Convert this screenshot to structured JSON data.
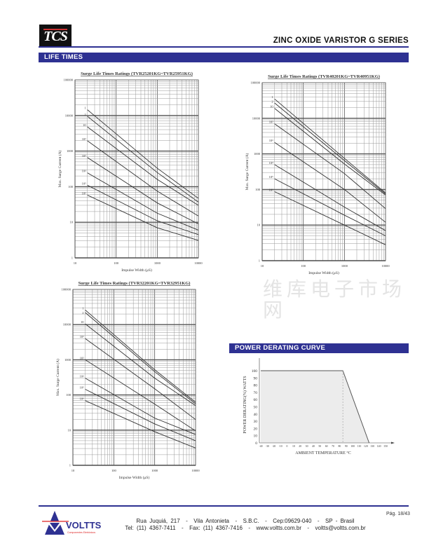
{
  "header": {
    "logo_text": "TCS",
    "series_title": "ZINC OXIDE VARISTOR G SERIES"
  },
  "sections": {
    "life_times": "LIFE TIMES",
    "power_derating": "POWER DERATING CURVE"
  },
  "watermark": "维库电子市场网",
  "chart_data": [
    {
      "type": "line",
      "title": "Surge Life Times Ratings (TVR25201KG~TVR25951KG)",
      "xlabel": "Impulse Width (μS)",
      "ylabel": "Max. Surge Current (A)",
      "xscale": "log",
      "yscale": "log",
      "xlim": [
        10,
        10000
      ],
      "ylim": [
        1,
        100000
      ],
      "xticks": [
        "10",
        "100",
        "1000",
        "10000"
      ],
      "yticks": [
        "1",
        "10",
        "100",
        "1000",
        "10000",
        "100000"
      ],
      "series": [
        {
          "name": "1",
          "x": [
            20,
            1000,
            10000
          ],
          "y": [
            14500,
            330,
            47
          ]
        },
        {
          "name": "2",
          "x": [
            20,
            1000,
            10000
          ],
          "y": [
            9500,
            250,
            37
          ]
        },
        {
          "name": "10",
          "x": [
            20,
            1000,
            10000
          ],
          "y": [
            4800,
            160,
            30
          ]
        },
        {
          "name": "10²",
          "x": [
            20,
            1000,
            10000
          ],
          "y": [
            1950,
            75,
            15
          ]
        },
        {
          "name": "10³",
          "x": [
            20,
            1000,
            10000
          ],
          "y": [
            660,
            35,
            9
          ]
        },
        {
          "name": "10⁴",
          "x": [
            20,
            1000,
            10000
          ],
          "y": [
            245,
            18,
            6
          ]
        },
        {
          "name": "10⁵",
          "x": [
            20,
            1000,
            10000
          ],
          "y": [
            110,
            11,
            4.5
          ]
        },
        {
          "name": "10⁶",
          "x": [
            20,
            1000,
            10000
          ],
          "y": [
            58,
            7,
            3.1
          ]
        }
      ]
    },
    {
      "type": "line",
      "title": "Surge Life Times Ratings (TVR40201KG~TVR40951KG)",
      "xlabel": "Impulse Width (μS)",
      "ylabel": "Max. Surge Current (A)",
      "xscale": "log",
      "yscale": "log",
      "xlim": [
        10,
        10000
      ],
      "ylim": [
        1,
        100000
      ],
      "xticks": [
        "10",
        "100",
        "1000",
        "10000"
      ],
      "yticks": [
        "1",
        "10",
        "100",
        "1000",
        "10000",
        "100000"
      ],
      "series": [
        {
          "name": "1",
          "x": [
            20,
            1000,
            10000
          ],
          "y": [
            35000,
            750,
            80
          ]
        },
        {
          "name": "2",
          "x": [
            20,
            1000,
            10000
          ],
          "y": [
            27000,
            650,
            75
          ]
        },
        {
          "name": "10",
          "x": [
            20,
            1000,
            10000
          ],
          "y": [
            19000,
            520,
            70
          ]
        },
        {
          "name": "10²",
          "x": [
            20,
            1000,
            10000
          ],
          "y": [
            7000,
            280,
            29
          ]
        },
        {
          "name": "10³",
          "x": [
            20,
            1000,
            10000
          ],
          "y": [
            2100,
            100,
            12
          ]
        },
        {
          "name": "10⁴",
          "x": [
            20,
            1000,
            10000
          ],
          "y": [
            500,
            32,
            7
          ]
        },
        {
          "name": "10⁵",
          "x": [
            20,
            1000,
            10000
          ],
          "y": [
            200,
            19,
            5
          ]
        },
        {
          "name": "10⁶",
          "x": [
            20,
            1000,
            10000
          ],
          "y": [
            87,
            10,
            2.8
          ]
        }
      ]
    },
    {
      "type": "line",
      "title": "Surge Life Times Ratings (TVR32201KG~TVR32951KG)",
      "xlabel": "Impulse Width (μS)",
      "ylabel": "Max. Surge Current (A)",
      "xscale": "log",
      "yscale": "log",
      "xlim": [
        10,
        10000
      ],
      "ylim": [
        1,
        100000
      ],
      "xticks": [
        "10",
        "100",
        "1000",
        "10000"
      ],
      "yticks": [
        "1",
        "10",
        "100",
        "1000",
        "10000",
        "100000"
      ],
      "series": [
        {
          "name": "1",
          "x": [
            20,
            1000,
            10000
          ],
          "y": [
            26000,
            520,
            62
          ]
        },
        {
          "name": "2",
          "x": [
            20,
            1000,
            10000
          ],
          "y": [
            22000,
            460,
            56
          ]
        },
        {
          "name": "10",
          "x": [
            20,
            1000,
            10000
          ],
          "y": [
            10500,
            300,
            50
          ]
        },
        {
          "name": "10²",
          "x": [
            20,
            1000,
            10000
          ],
          "y": [
            4000,
            150,
            20
          ]
        },
        {
          "name": "10³",
          "x": [
            20,
            1000,
            10000
          ],
          "y": [
            1000,
            55,
            9.5
          ]
        },
        {
          "name": "10⁴",
          "x": [
            20,
            1000,
            10000
          ],
          "y": [
            300,
            22,
            7.5
          ]
        },
        {
          "name": "10⁵",
          "x": [
            20,
            1000,
            10000
          ],
          "y": [
            145,
            15,
            5
          ]
        },
        {
          "name": "10⁶",
          "x": [
            20,
            1000,
            10000
          ],
          "y": [
            69,
            9,
            3.1
          ]
        }
      ]
    },
    {
      "type": "area",
      "title": "POWER DERATING CURVE",
      "xlabel": "AMBIENT TEMPERATURE °C",
      "ylabel": "POWER DERATING(%) WATTS",
      "xlim": [
        -40,
        150
      ],
      "ylim": [
        0,
        100
      ],
      "xticks": [
        "-40",
        "-30",
        "-20",
        "-10",
        "0",
        "10",
        "20",
        "30",
        "40",
        "50",
        "60",
        "70",
        "80",
        "90",
        "100",
        "110",
        "120",
        "130",
        "140",
        "150"
      ],
      "yticks": [
        "0",
        "10",
        "20",
        "30",
        "40",
        "50",
        "60",
        "70",
        "80",
        "90",
        "100"
      ],
      "x": [
        -40,
        85,
        125
      ],
      "y": [
        100,
        100,
        0
      ],
      "dashed_marker_x": 85
    }
  ],
  "footer": {
    "logo_text": "VOLTTS",
    "logo_sub": "Componentes Eletrônicos",
    "address": "Rua Juquiá, 217  -  Vila Antonieta  -  S.B.C.  -  Cep:09629-040  -  SP - Brasil",
    "contact": "Tel: (11) 4367-7411  -  Fax: (11) 4367-7416  -  www.voltts.com.br  -  voltts@voltts.com.br",
    "page": "Pág. 18/43"
  }
}
